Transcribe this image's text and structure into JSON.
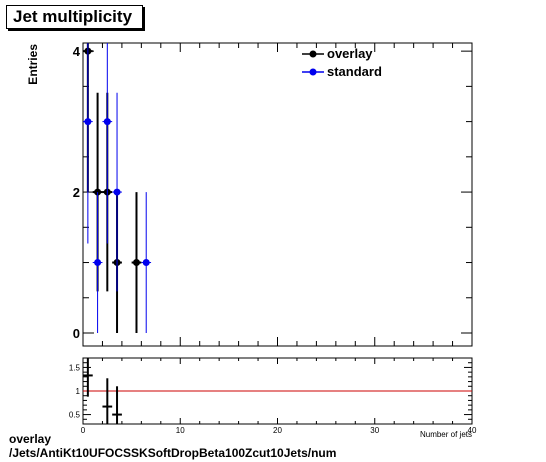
{
  "title": "Jet multiplicity",
  "footer": {
    "line1": "overlay",
    "line2": "/Jets/AntiKt10UFOCSSKSoftDropBeta100Zcut10Jets/num"
  },
  "chart_data": [
    {
      "type": "scatter",
      "panel": "main",
      "ylabel": "Entries",
      "xlim": [
        0,
        40
      ],
      "ylim": [
        0,
        4.3
      ],
      "yticks": [
        0,
        2,
        4
      ],
      "legend_placement": "top-right",
      "series": [
        {
          "name": "overlay",
          "color": "#000000",
          "points": [
            {
              "x": 0.5,
              "y": 4,
              "yerr": 2
            },
            {
              "x": 1.5,
              "y": 2,
              "yerr": 1.41
            },
            {
              "x": 2.5,
              "y": 2,
              "yerr": 1.41
            },
            {
              "x": 3.5,
              "y": 1,
              "yerr": 1
            },
            {
              "x": 5.5,
              "y": 1,
              "yerr": 1
            }
          ]
        },
        {
          "name": "standard",
          "color": "#0000ee",
          "points": [
            {
              "x": 0.5,
              "y": 3,
              "yerr": 1.73
            },
            {
              "x": 1.5,
              "y": 1,
              "yerr": 1
            },
            {
              "x": 2.5,
              "y": 3,
              "yerr": 1.73
            },
            {
              "x": 3.5,
              "y": 2,
              "yerr": 1.41
            },
            {
              "x": 6.5,
              "y": 1,
              "yerr": 1
            }
          ]
        }
      ]
    },
    {
      "type": "scatter",
      "panel": "ratio",
      "xlabel": "Number of jets",
      "xlim": [
        0,
        40
      ],
      "xticks": [
        0,
        10,
        20,
        30,
        40
      ],
      "ylim": [
        0.3,
        1.7
      ],
      "yticks": [
        0.5,
        1,
        1.5
      ],
      "reference_line": 1,
      "reference_color": "#cc0000",
      "points": [
        {
          "x": 0.5,
          "y": 1.33,
          "yerr": 0.45
        },
        {
          "x": 2.5,
          "y": 0.67,
          "yerr": 0.6
        },
        {
          "x": 3.5,
          "y": 0.5,
          "yerr": 0.6
        }
      ]
    }
  ]
}
